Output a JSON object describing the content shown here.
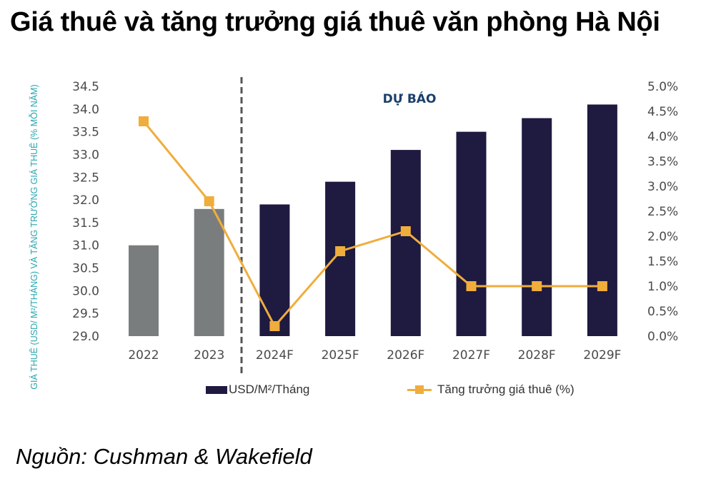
{
  "title": "Giá thuê và tăng trưởng giá thuê văn phòng Hà Nội",
  "source": "Nguồn: Cushman & Wakefield",
  "forecast_label": "DỰ BÁO",
  "colors": {
    "actual_bar": "#7a7d7e",
    "forecast_bar": "#1e1a40",
    "growth_line": "#f0ad3c",
    "axis_label": "#2aa6b0",
    "forecast_text": "#1a3f6b",
    "divider": "#555555"
  },
  "legend": {
    "bar_label": "USD/M²/Tháng",
    "line_label": "Tăng trưởng giá thuê (%)"
  },
  "chart_data": {
    "type": "bar",
    "title": "Giá thuê và tăng trưởng giá thuê văn phòng Hà Nội",
    "ylabel": "GIÁ THUÊ (USD/ M²/THÁNG) VÀ TĂNG TRƯỞNG GIÁ THUÊ (% MỖI NĂM)",
    "xlabel": "",
    "categories": [
      "2022",
      "2023",
      "2024F",
      "2025F",
      "2026F",
      "2027F",
      "2028F",
      "2029F"
    ],
    "forecast_start_index": 2,
    "annotation": "DỰ BÁO",
    "series": [
      {
        "name": "USD/M²/Tháng",
        "type": "bar",
        "axis": "left",
        "values": [
          31.0,
          31.8,
          31.9,
          32.4,
          33.1,
          33.5,
          33.8,
          34.1
        ]
      },
      {
        "name": "Tăng trưởng giá thuê (%)",
        "type": "line",
        "axis": "right",
        "values": [
          4.3,
          2.7,
          0.2,
          1.7,
          2.1,
          1.0,
          1.0,
          1.0
        ]
      }
    ],
    "y_left": {
      "range": [
        29.0,
        34.5
      ],
      "ticks": [
        "34.5",
        "34.0",
        "33.5",
        "33.0",
        "32.5",
        "32.0",
        "31.5",
        "31.0",
        "30.5",
        "30.0",
        "29.5",
        "29.0"
      ]
    },
    "y_right": {
      "range": [
        0.0,
        5.0
      ],
      "ticks": [
        "5.0%",
        "4.5%",
        "4.0%",
        "3.5%",
        "3.0%",
        "2.5%",
        "2.0%",
        "1.5%",
        "1.0%",
        "0.5%",
        "0.0%"
      ]
    },
    "grid": false,
    "legend_position": "bottom"
  }
}
